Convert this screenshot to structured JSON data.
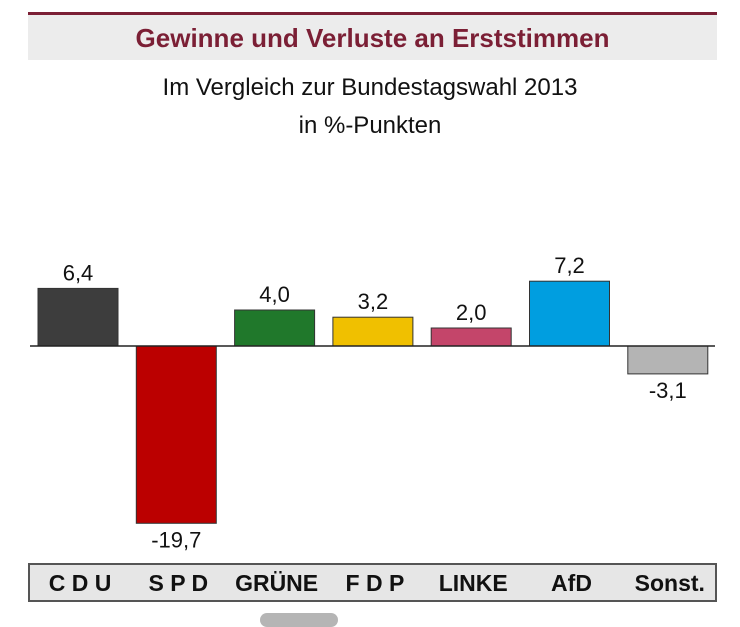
{
  "header": {
    "title": "Gewinne und Verluste an Erststimmen",
    "subtitle_line1": "Im Vergleich zur Bundestagswahl 2013",
    "subtitle_line2": "in %-Punkten"
  },
  "chart_data": {
    "type": "bar",
    "title": "Gewinne und Verluste an Erststimmen",
    "subtitle": "Im Vergleich zur Bundestagswahl 2013 in %-Punkten",
    "xlabel": "",
    "ylabel": "",
    "ylim": [
      -19.7,
      7.2
    ],
    "grid": false,
    "categories": [
      "C D U",
      "S P D",
      "GRÜNE",
      "F D P",
      "LINKE",
      "AfD",
      "Sonst."
    ],
    "values": [
      6.4,
      -19.7,
      4.0,
      3.2,
      2.0,
      7.2,
      -3.1
    ],
    "value_labels": [
      "6,4",
      "-19,7",
      "4,0",
      "3,2",
      "2,0",
      "7,2",
      "-3,1"
    ],
    "colors": [
      "#3d3d3d",
      "#bb0000",
      "#20782b",
      "#f0c000",
      "#c4456a",
      "#009ee0",
      "#b4b4b4"
    ]
  }
}
